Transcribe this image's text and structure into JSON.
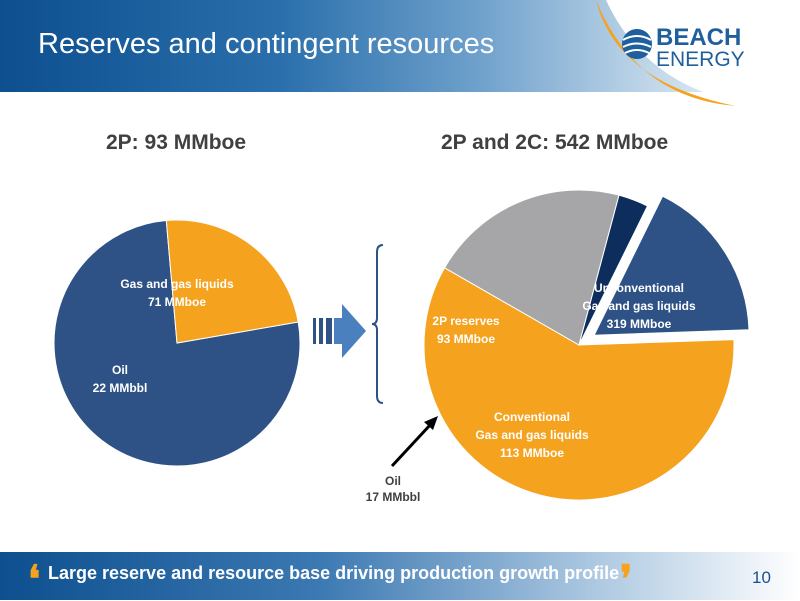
{
  "header": {
    "title": "Reserves and contingent resources"
  },
  "logo": {
    "line1": "BEACH",
    "line2": "ENERGY"
  },
  "footer": {
    "text": "Large reserve and resource base driving production growth profile",
    "page_number": "10"
  },
  "colors": {
    "blue": "#2e5286",
    "orange": "#f5a21e",
    "grey": "#a6a6a8",
    "navy": "#0d2d5c",
    "white_text": "#ffffff"
  },
  "chart_data": [
    {
      "type": "pie",
      "title": "2P: 93 MMboe",
      "slices": [
        {
          "label": [
            "Gas and gas liquids",
            "71 MMboe"
          ],
          "value": 71,
          "color": "#2e5286"
        },
        {
          "label": [
            "Oil",
            "22 MMbbl"
          ],
          "value": 22,
          "color": "#f5a21e"
        }
      ]
    },
    {
      "type": "pie",
      "title": "2P and 2C: 542 MMboe",
      "slices": [
        {
          "label": [
            "Unconventional",
            "Gas and gas liquids",
            "319 MMboe"
          ],
          "value": 319,
          "color": "#f5a21e"
        },
        {
          "label": [
            "Conventional",
            "Gas and gas liquids",
            "113 MMboe"
          ],
          "value": 113,
          "color": "#a6a6a8"
        },
        {
          "label": [
            "Oil",
            "17 MMbbl"
          ],
          "value": 17,
          "color": "#0d2d5c"
        },
        {
          "label": [
            "2P reserves",
            "93 MMboe"
          ],
          "value": 93,
          "color": "#2e5286",
          "exploded": true
        }
      ]
    }
  ]
}
